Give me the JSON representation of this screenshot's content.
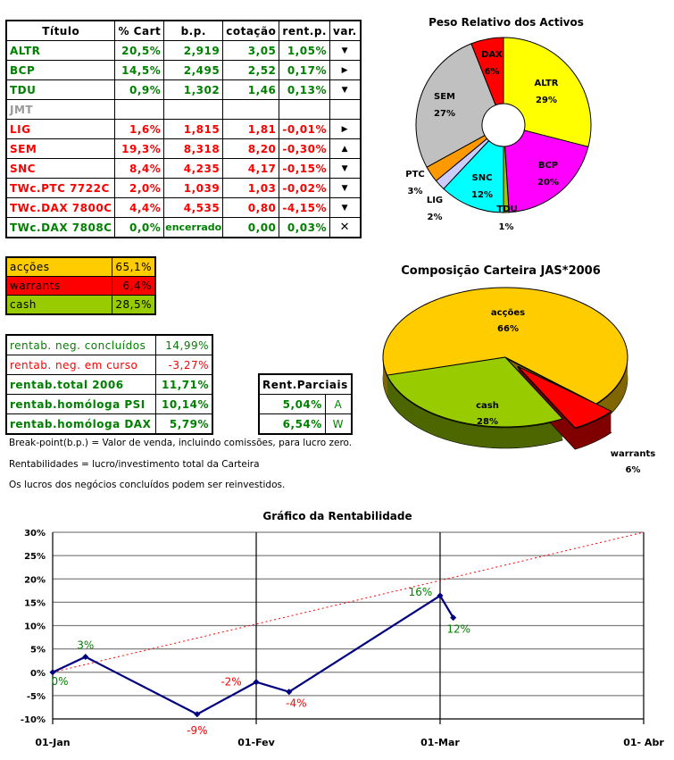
{
  "holdings_table": {
    "headers": [
      "Título",
      "% Cart",
      "b.p.",
      "cotação",
      "rent.p.",
      "var."
    ],
    "rows": [
      {
        "titulo": "ALTR",
        "cart": "20,5%",
        "bp": "2,919",
        "cotacao": "3,05",
        "rent": "1,05%",
        "var": "down",
        "color": "green"
      },
      {
        "titulo": "BCP",
        "cart": "14,5%",
        "bp": "2,495",
        "cotacao": "2,52",
        "rent": "0,17%",
        "var": "right",
        "color": "green"
      },
      {
        "titulo": "TDU",
        "cart": "0,9%",
        "bp": "1,302",
        "cotacao": "1,46",
        "rent": "0,13%",
        "var": "down",
        "color": "green"
      },
      {
        "titulo": "JMT",
        "cart": "",
        "bp": "",
        "cotacao": "",
        "rent": "",
        "var": "",
        "color": "gray"
      },
      {
        "titulo": "LIG",
        "cart": "1,6%",
        "bp": "1,815",
        "cotacao": "1,81",
        "rent": "-0,01%",
        "var": "right",
        "color": "red"
      },
      {
        "titulo": "SEM",
        "cart": "19,3%",
        "bp": "8,318",
        "cotacao": "8,20",
        "rent": "-0,30%",
        "var": "up",
        "color": "red"
      },
      {
        "titulo": "SNC",
        "cart": "8,4%",
        "bp": "4,235",
        "cotacao": "4,17",
        "rent": "-0,15%",
        "var": "down",
        "color": "red"
      },
      {
        "titulo": "TWc.PTC 7722C",
        "cart": "2,0%",
        "bp": "1,039",
        "cotacao": "1,03",
        "rent": "-0,02%",
        "var": "down",
        "color": "red"
      },
      {
        "titulo": "TWc.DAX 7800C",
        "cart": "4,4%",
        "bp": "4,535",
        "cotacao": "0,80",
        "rent": "-4,15%",
        "var": "down",
        "color": "red"
      },
      {
        "titulo": "TWc.DAX 7808C",
        "cart": "0,0%",
        "bp": "encerrado",
        "cotacao": "0,00",
        "rent": "0,03%",
        "var": "closed",
        "color": "green"
      }
    ]
  },
  "allocation": [
    {
      "label": "acções",
      "value": "65,1%",
      "bg": "#FFCC00"
    },
    {
      "label": "warrants",
      "value": "6,4%",
      "bg": "#FF0000"
    },
    {
      "label": "cash",
      "value": "28,5%",
      "bg": "#99CC00"
    }
  ],
  "returns": [
    {
      "label": "rentab. neg. concluídos",
      "value": "14,99%",
      "color": "green",
      "bold": false
    },
    {
      "label": "rentab. neg. em curso",
      "value": "-3,27%",
      "color": "red",
      "bold": false
    },
    {
      "label": "rentab.total 2006",
      "value": "11,71%",
      "color": "green",
      "bold": true
    },
    {
      "label": "rentab.homóloga PSI",
      "value": "10,14%",
      "color": "green",
      "bold": true
    },
    {
      "label": "rentab.homóloga DAX",
      "value": "5,79%",
      "color": "green",
      "bold": true
    }
  ],
  "partial_returns": {
    "header": "Rent.Parciais",
    "rows": [
      {
        "value": "5,04%",
        "code": "A"
      },
      {
        "value": "6,54%",
        "code": "W"
      }
    ]
  },
  "notes": [
    "Break-point(b.p.) = Valor de venda, incluindo comissões, para lucro zero.",
    "Rentabilidades = lucro/investimento total da Carteira",
    "Os lucros dos negócios concluídos podem ser reinvestidos."
  ],
  "var_icons": {
    "down": "▼",
    "right": "▶",
    "up": "▲",
    "closed": "✕"
  },
  "colors": {
    "green": "#008000",
    "red": "#FF0000",
    "gray": "#999999",
    "line": "#000080",
    "target": "#FF0000"
  },
  "chart_data": [
    {
      "type": "pie",
      "title": "Peso Relativo dos Activos",
      "style": "doughnut",
      "slices": [
        {
          "label": "ALTR",
          "value": 29,
          "text": "29%",
          "color": "#FFFF00"
        },
        {
          "label": "BCP",
          "value": 20,
          "text": "20%",
          "color": "#FF00FF"
        },
        {
          "label": "TDU",
          "value": 1,
          "text": "1%",
          "color": "#99CC00"
        },
        {
          "label": "SNC",
          "value": 12,
          "text": "12%",
          "color": "#00FFFF"
        },
        {
          "label": "LIG",
          "value": 2,
          "text": "2%",
          "color": "#CCCCFF"
        },
        {
          "label": "PTC",
          "value": 3,
          "text": "3%",
          "color": "#FF9900"
        },
        {
          "label": "SEM",
          "value": 27,
          "text": "27%",
          "color": "#C0C0C0"
        },
        {
          "label": "DAX",
          "value": 6,
          "text": "6%",
          "color": "#FF0000"
        }
      ]
    },
    {
      "type": "pie",
      "title": "Composição Carteira JAS*2006",
      "style": "3d-exploded",
      "slices": [
        {
          "label": "acções",
          "value": 66,
          "text": "66%",
          "color": "#FFCC00",
          "side": "#806600"
        },
        {
          "label": "cash",
          "value": 28,
          "text": "28%",
          "color": "#99CC00",
          "side": "#4D6600"
        },
        {
          "label": "warrants",
          "value": 6,
          "text": "6%",
          "color": "#FF0000",
          "side": "#800000"
        }
      ]
    },
    {
      "type": "line",
      "title": "Gráfico da Rentabilidade",
      "xlabel": "",
      "ylabel": "",
      "x_ticks": [
        "01-Jan",
        "01-Fev",
        "01-Mar",
        "01- Abr"
      ],
      "x_tick_dates": [
        "2006-01-01",
        "2006-02-01",
        "2006-03-01",
        "2006-04-01"
      ],
      "ylim": [
        -10,
        30
      ],
      "y_ticks": [
        "30%",
        "25%",
        "20%",
        "15%",
        "10%",
        "5%",
        "0%",
        "-5%",
        "-10%"
      ],
      "grid": true,
      "series": [
        {
          "style": "solid-markers",
          "color": "#000080",
          "points": [
            {
              "date": "2006-01-01",
              "value": 0,
              "label": "0%"
            },
            {
              "date": "2006-01-06",
              "value": 3.3,
              "label": "3%"
            },
            {
              "date": "2006-01-23",
              "value": -9,
              "label": "-9%"
            },
            {
              "date": "2006-02-01",
              "value": -2.1,
              "label": "-2%"
            },
            {
              "date": "2006-02-06",
              "value": -4.2,
              "label": "-4%"
            },
            {
              "date": "2006-03-01",
              "value": 16.4,
              "label": "16%"
            },
            {
              "date": "2006-03-03",
              "value": 11.7,
              "label": "12%"
            }
          ]
        },
        {
          "style": "dashed",
          "color": "#FF0000",
          "points": [
            {
              "date": "2006-01-01",
              "value": 0
            },
            {
              "date": "2006-04-01",
              "value": 30
            }
          ]
        }
      ]
    }
  ]
}
